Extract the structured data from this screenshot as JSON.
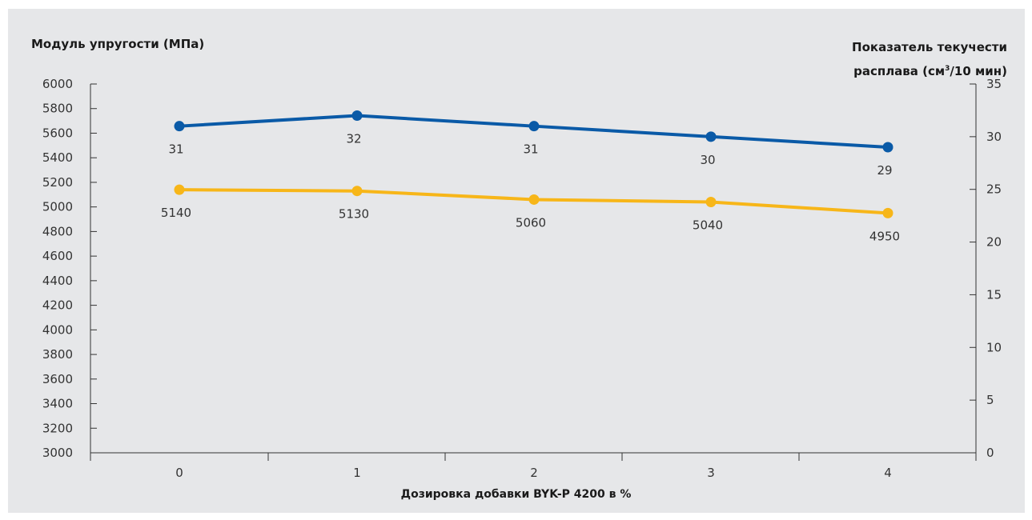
{
  "chart_data": {
    "type": "line",
    "xlabel": "Дозировка добавки BYK-P 4200 в %",
    "ylabel_left": "Модуль упругости (МПа)",
    "ylabel_right_line1": "Показатель текучести",
    "ylabel_right_line2_pre": "расплава (см",
    "ylabel_right_line2_sup": "3",
    "ylabel_right_line2_post": "/10 мин)",
    "categories": [
      "0",
      "1",
      "2",
      "3",
      "4"
    ],
    "y_left": {
      "min": 3000,
      "max": 6000,
      "step": 200
    },
    "y_right": {
      "min": 0,
      "max": 35,
      "step": 5
    },
    "series": [
      {
        "axis": "right",
        "color": "#0a5aa7",
        "values": [
          31,
          32,
          31,
          30,
          29
        ],
        "labels": [
          "31",
          "32",
          "31",
          "30",
          "29"
        ]
      },
      {
        "axis": "left",
        "color": "#f7b619",
        "values": [
          5140,
          5130,
          5060,
          5040,
          4950
        ],
        "labels": [
          "5140",
          "5130",
          "5060",
          "5040",
          "4950"
        ]
      }
    ],
    "y_left_ticks": [
      "3000",
      "3200",
      "3400",
      "3600",
      "3800",
      "4000",
      "4200",
      "4400",
      "4600",
      "4800",
      "5000",
      "5200",
      "5400",
      "5600",
      "5800",
      "6000"
    ],
    "y_right_ticks": [
      "0",
      "5",
      "10",
      "15",
      "20",
      "25",
      "30",
      "35"
    ]
  }
}
